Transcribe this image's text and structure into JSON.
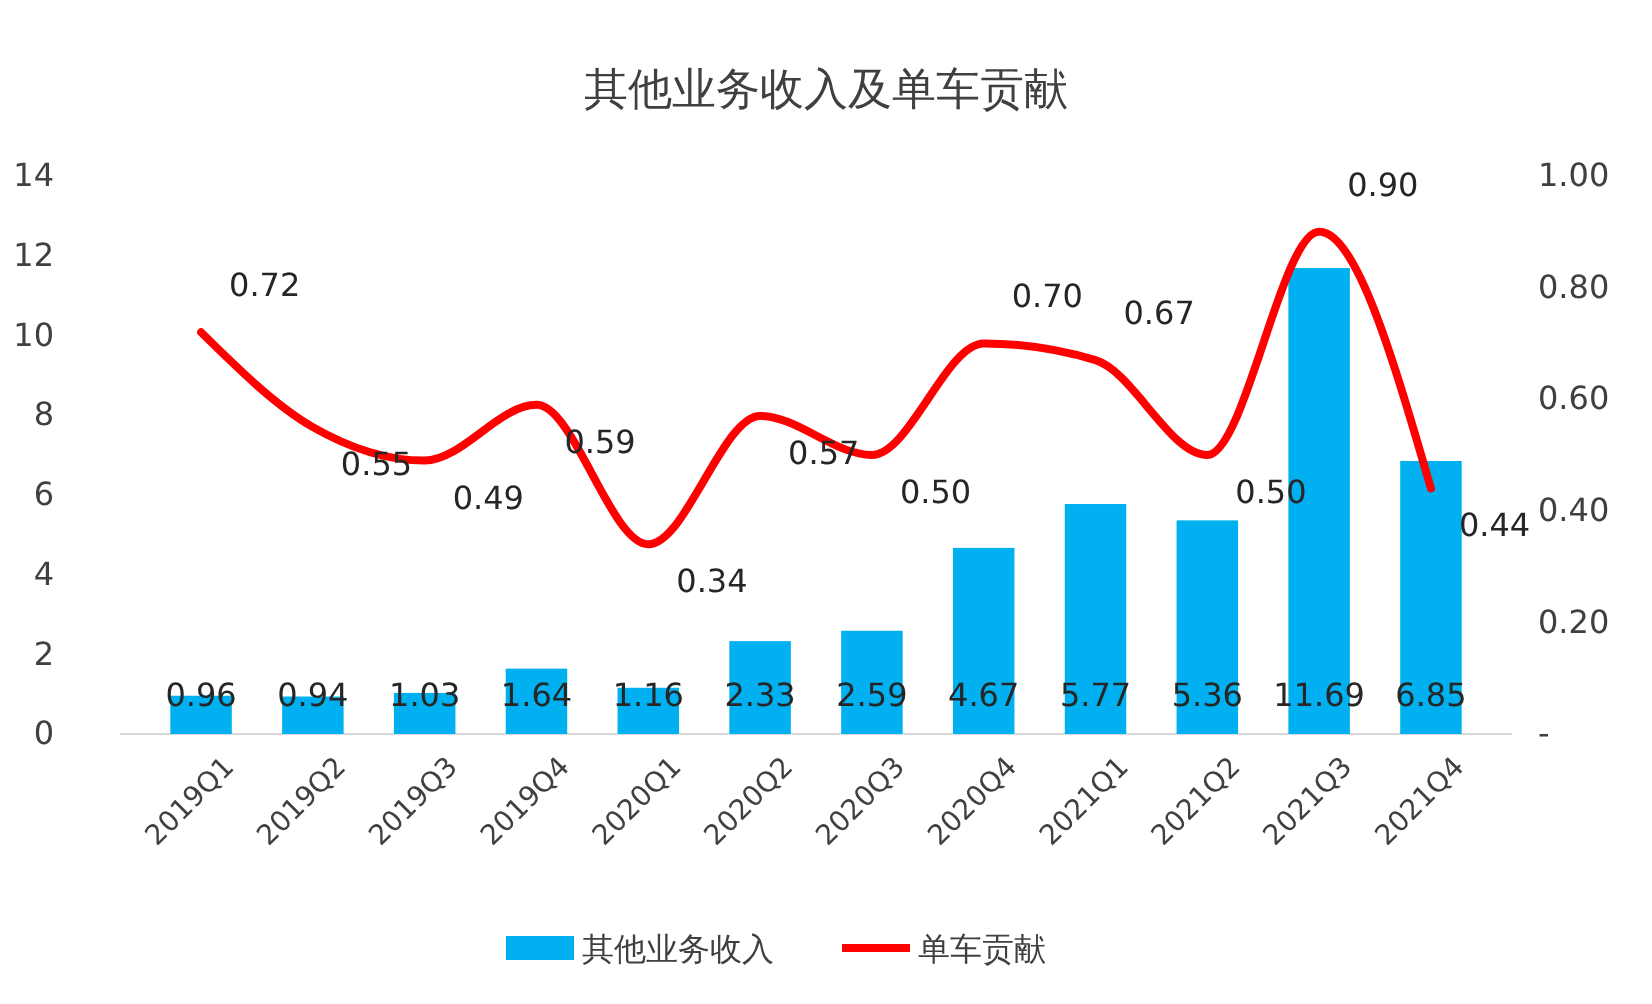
{
  "chart_data": {
    "type": "bar",
    "title": "其他业务收入及单车贡献",
    "categories": [
      "2019Q1",
      "2019Q2",
      "2019Q3",
      "2019Q4",
      "2020Q1",
      "2020Q2",
      "2020Q3",
      "2020Q4",
      "2021Q1",
      "2021Q2",
      "2021Q3",
      "2021Q4"
    ],
    "series": [
      {
        "name": "其他业务收入",
        "color": "#00b0f0",
        "values": [
          0.96,
          0.94,
          1.03,
          1.64,
          1.16,
          2.33,
          2.59,
          4.67,
          5.77,
          5.36,
          11.69,
          6.85
        ]
      },
      {
        "name": "单车贡献",
        "type": "line",
        "axis": "y2",
        "color": "#ff0000",
        "values": [
          0.72,
          0.55,
          0.49,
          0.59,
          0.34,
          0.57,
          0.5,
          0.7,
          0.67,
          0.5,
          0.9,
          0.44
        ],
        "value_labels": [
          "0.72",
          "0.55",
          "0.49",
          "0.59",
          "0.34",
          "0.57",
          "0.50",
          "0.70",
          "0.67",
          "0.50",
          "0.90",
          "0.44"
        ]
      }
    ],
    "ylim": [
      0,
      14
    ],
    "yticks": [
      0,
      2,
      4,
      6,
      8,
      10,
      12,
      14
    ],
    "y2lim": [
      0,
      1
    ],
    "y2ticks": [
      {
        "value": 0,
        "label": "-"
      },
      {
        "value": 0.2,
        "label": "0.20"
      },
      {
        "value": 0.4,
        "label": "0.40"
      },
      {
        "value": 0.6,
        "label": "0.60"
      },
      {
        "value": 0.8,
        "label": "0.80"
      },
      {
        "value": 1,
        "label": "1.00"
      }
    ],
    "data_labels": true,
    "legend": "bottom",
    "grid": false
  }
}
